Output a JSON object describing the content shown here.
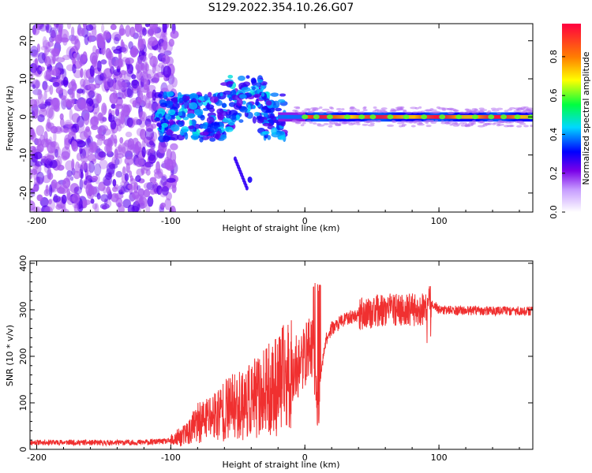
{
  "figure": {
    "title": "S129.2022.354.10.26.G07"
  },
  "chart_data": [
    {
      "type": "heatmap",
      "title": "S129.2022.354.10.26.G07",
      "xlabel": "Height of straight line (km)",
      "ylabel": "Frequency (Hz)",
      "xlim": [
        -205,
        170
      ],
      "ylim": [
        -25,
        24.5
      ],
      "xticks": [
        -200,
        -100,
        0,
        100
      ],
      "yticks": [
        -20,
        -10,
        0,
        10,
        20
      ],
      "colorbar": {
        "label": "Normalized spectral amplitude",
        "range": [
          0,
          0.97
        ],
        "ticks": [
          0.0,
          0.2,
          0.4,
          0.6,
          0.8
        ],
        "colors": [
          "#ffffff",
          "#7a00e8",
          "#0000ff",
          "#00d8ff",
          "#00ff40",
          "#ffff00",
          "#ff8000",
          "#ff0040"
        ]
      },
      "regions": [
        {
          "x_range": [
            -205,
            -100
          ],
          "y_range": [
            -25,
            24.5
          ],
          "amplitude": 0.15
        },
        {
          "x_range": [
            -100,
            -15
          ],
          "y_range": [
            -6,
            8
          ],
          "amplitude": 0.3
        },
        {
          "x_range": [
            0,
            170
          ],
          "y_range": [
            -1,
            1
          ],
          "amplitude": 0.9
        }
      ]
    },
    {
      "type": "line",
      "xlabel": "Height of straight line (km)",
      "ylabel": "SNR (10 * v/v)",
      "xlim": [
        -205,
        170
      ],
      "ylim": [
        0,
        405
      ],
      "xticks": [
        -200,
        -100,
        0,
        100
      ],
      "yticks": [
        0,
        100,
        200,
        300,
        400
      ],
      "series": [
        {
          "color": "#f03030",
          "x": [
            -205,
            -180,
            -150,
            -120,
            -100,
            -90,
            -80,
            -70,
            -60,
            -50,
            -40,
            -30,
            -20,
            -12,
            -5,
            0,
            5,
            8,
            10,
            12,
            15,
            20,
            30,
            40,
            50,
            60,
            70,
            80,
            90,
            93,
            100,
            120,
            140,
            170
          ],
          "y": [
            15,
            15,
            14,
            15,
            18,
            30,
            55,
            70,
            85,
            95,
            105,
            120,
            140,
            160,
            180,
            200,
            230,
            170,
            40,
            160,
            230,
            260,
            280,
            290,
            295,
            300,
            300,
            300,
            300,
            320,
            300,
            298,
            298,
            297
          ]
        }
      ]
    }
  ]
}
